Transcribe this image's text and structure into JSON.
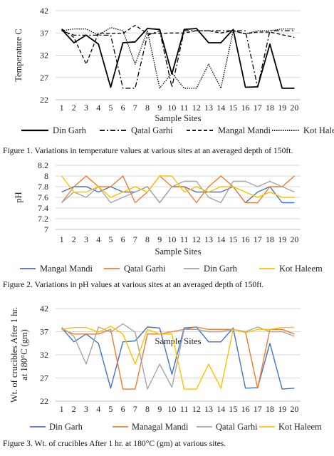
{
  "charts": [
    {
      "type": "line",
      "ylabel": "Temperature C",
      "xlabel": "Sample Sites",
      "caption": "Figure 1. Variations in temperature values at various sites at an averaged depth of 150ft.",
      "ylim": [
        22,
        42
      ],
      "yticks": [
        22,
        27,
        32,
        37,
        42
      ],
      "categories": [
        "1",
        "2",
        "3",
        "4",
        "5",
        "6",
        "7",
        "8",
        "9",
        "10",
        "11",
        "12",
        "13",
        "14",
        "15",
        "16",
        "17",
        "18",
        "19",
        "20"
      ],
      "grid": "horizontal",
      "legend_position": "bottom",
      "series": [
        {
          "name": "Din Garh",
          "color": "#000000",
          "dash": "",
          "width": 1.8,
          "values": [
            37.8,
            34.8,
            36.5,
            34.5,
            24.8,
            34.8,
            35,
            38,
            37.8,
            27.8,
            37.8,
            38,
            34.8,
            34.8,
            37.8,
            24.8,
            24.9,
            34.5,
            24.6,
            24.6
          ]
        },
        {
          "name": "Qatal Garhi",
          "color": "#000000",
          "dash": "7,3,2,3",
          "width": 1.3,
          "values": [
            37.5,
            36.5,
            36.5,
            36.5,
            36.5,
            24.6,
            24.6,
            36.5,
            37.5,
            24.8,
            37.5,
            37.5,
            37.5,
            37.5,
            37.5,
            37.5,
            24.8,
            37.5,
            37.5,
            37.5
          ]
        },
        {
          "name": "Mangal Mandi",
          "color": "#000000",
          "dash": "5,3",
          "width": 1.3,
          "values": [
            37.9,
            36,
            30,
            37,
            36.9,
            36.9,
            38.7,
            36.9,
            36.9,
            37,
            37,
            37.5,
            37.5,
            37,
            37.5,
            36.8,
            37.2,
            37.2,
            36.6,
            36
          ]
        },
        {
          "name": "Kot Haleem",
          "color": "#000000",
          "dash": "1.5,1.5",
          "width": 1.3,
          "values": [
            37.5,
            37.9,
            37.9,
            36.5,
            38.2,
            37.5,
            30,
            37.5,
            24.6,
            28,
            24.6,
            24.6,
            30,
            24.6,
            37.5,
            36.8,
            37.5,
            37.5,
            37.9,
            37.9
          ]
        }
      ]
    },
    {
      "type": "line",
      "ylabel": "pH",
      "xlabel": "Sample Sites",
      "caption": "Figure 2. Variations in pH values at various sites at an averaged depth of 150ft.",
      "ylim": [
        7,
        8.2
      ],
      "yticks": [
        7,
        7.2,
        7.4,
        7.6,
        7.8,
        8,
        8.2
      ],
      "categories": [
        "1",
        "2",
        "3",
        "4",
        "5",
        "6",
        "7",
        "8",
        "9",
        "10",
        "11",
        "12",
        "13",
        "14",
        "15",
        "16",
        "17",
        "18",
        "19",
        "20"
      ],
      "grid": "horizontal",
      "legend_position": "bottom",
      "series": [
        {
          "name": "Mangal Mandi",
          "color": "#4472C4",
          "dash": "",
          "width": 1.4,
          "values": [
            7.7,
            7.8,
            7.8,
            7.7,
            7.8,
            7.7,
            7.7,
            7.8,
            7.5,
            7.8,
            7.8,
            7.7,
            7.7,
            7.7,
            7.8,
            7.5,
            7.7,
            7.8,
            7.5,
            7.5
          ]
        },
        {
          "name": "Qatal Garhi",
          "color": "#ED7D31",
          "dash": "",
          "width": 1.4,
          "values": [
            7.5,
            7.8,
            8,
            7.8,
            7.8,
            8,
            7.5,
            7.7,
            8,
            7.8,
            7.8,
            7.5,
            7.8,
            8,
            7.8,
            7.5,
            7.5,
            7.8,
            7.8,
            8
          ]
        },
        {
          "name": "Din Garh",
          "color": "#A5A5A5",
          "dash": "",
          "width": 1.4,
          "values": [
            7.5,
            7.7,
            7.6,
            7.8,
            7.5,
            7.6,
            7.7,
            7.8,
            7.5,
            7.8,
            7.9,
            7.9,
            7.6,
            7.5,
            7.9,
            7.9,
            7.8,
            7.9,
            7.8,
            7.7
          ]
        },
        {
          "name": "Kot Haleem",
          "color": "#FFC000",
          "dash": "",
          "width": 1.4,
          "values": [
            8,
            7.7,
            7.7,
            7.8,
            7.6,
            7.7,
            7.8,
            7.7,
            8,
            8,
            7.7,
            7.8,
            7.7,
            7.8,
            7.8,
            7.7,
            7.6,
            7.7,
            7.6,
            7.6
          ]
        }
      ]
    },
    {
      "type": "line",
      "ylabel": "Wt. of crucibles After 1 hr. at 180°C (gm)",
      "xlabel": "Sample Sites",
      "caption": "Figure 3. Wt. of crucibles After 1 hr. at 180°C (gm) at various sites.",
      "ylim": [
        22,
        42
      ],
      "yticks": [
        22,
        27,
        32,
        37,
        42
      ],
      "categories": [
        "1",
        "2",
        "3",
        "4",
        "5",
        "6",
        "7",
        "8",
        "9",
        "10",
        "11",
        "12",
        "13",
        "14",
        "15",
        "16",
        "17",
        "18",
        "19",
        "20"
      ],
      "grid": "horizontal",
      "legend_position": "bottom",
      "series": [
        {
          "name": "Din Garh",
          "color": "#4472C4",
          "dash": "",
          "width": 1.4,
          "values": [
            37.8,
            34.8,
            36.5,
            34.5,
            24.8,
            34.8,
            35,
            38,
            37.8,
            27.8,
            37.8,
            38,
            34.8,
            34.8,
            37.8,
            24.8,
            24.9,
            34.5,
            24.6,
            24.8
          ]
        },
        {
          "name": "Managal Mandi",
          "color": "#ED7D31",
          "dash": "",
          "width": 1.4,
          "values": [
            37.5,
            36.5,
            36.5,
            36.5,
            37.5,
            24.6,
            24.6,
            36.5,
            36.5,
            37,
            37.5,
            38,
            37.5,
            37.5,
            37.5,
            37,
            24.8,
            37.5,
            37.5,
            36.5
          ]
        },
        {
          "name": "Qatal Garhi",
          "color": "#A5A5A5",
          "dash": "",
          "width": 1.4,
          "values": [
            37.9,
            36,
            30,
            38,
            36.9,
            38.7,
            36.9,
            24.6,
            30,
            25,
            37.5,
            37.5,
            37,
            37,
            37.5,
            37,
            38,
            37,
            37,
            36
          ]
        },
        {
          "name": "Kot Haleem",
          "color": "#FFC000",
          "dash": "",
          "width": 1.4,
          "values": [
            37.5,
            37.9,
            37.9,
            36.9,
            38.2,
            36.5,
            30,
            37.5,
            36.5,
            36.5,
            24.6,
            24.6,
            30,
            24.8,
            37.5,
            36.8,
            37.5,
            37.5,
            37.9,
            37.9
          ]
        }
      ]
    }
  ]
}
